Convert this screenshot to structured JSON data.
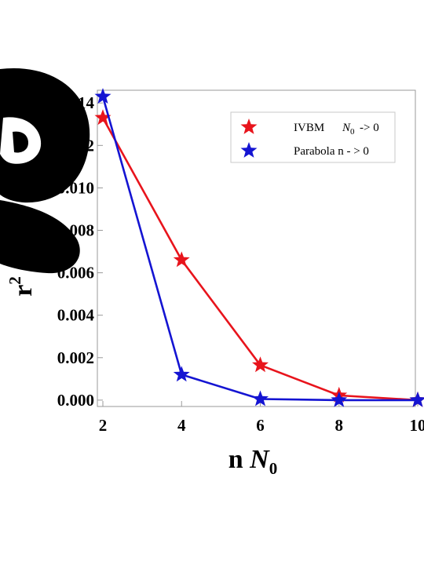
{
  "chart_data": {
    "type": "line",
    "title": "",
    "xlabel": "n N0",
    "ylabel": "r2",
    "x": [
      2,
      4,
      6,
      8,
      10
    ],
    "xticks": [
      "2",
      "4",
      "6",
      "8",
      "10"
    ],
    "yticks": [
      "0.000",
      "0.002",
      "0.004",
      "0.006",
      "0.008",
      "0.010",
      "0.012",
      "0.014"
    ],
    "xlim": [
      2,
      10
    ],
    "ylim": [
      -0.0003,
      0.0146
    ],
    "grid": false,
    "legend_position": "top-right",
    "series": [
      {
        "name": "IVBM   N0 -> 0",
        "color": "#e8141c",
        "marker": "star",
        "values": [
          0.0133,
          0.0066,
          0.00165,
          0.00022,
          0.0
        ]
      },
      {
        "name": "Parabola  n -> 0",
        "color": "#1414d2",
        "marker": "star",
        "values": [
          0.0143,
          0.0012,
          5e-05,
          0.0,
          0.0
        ]
      }
    ]
  }
}
